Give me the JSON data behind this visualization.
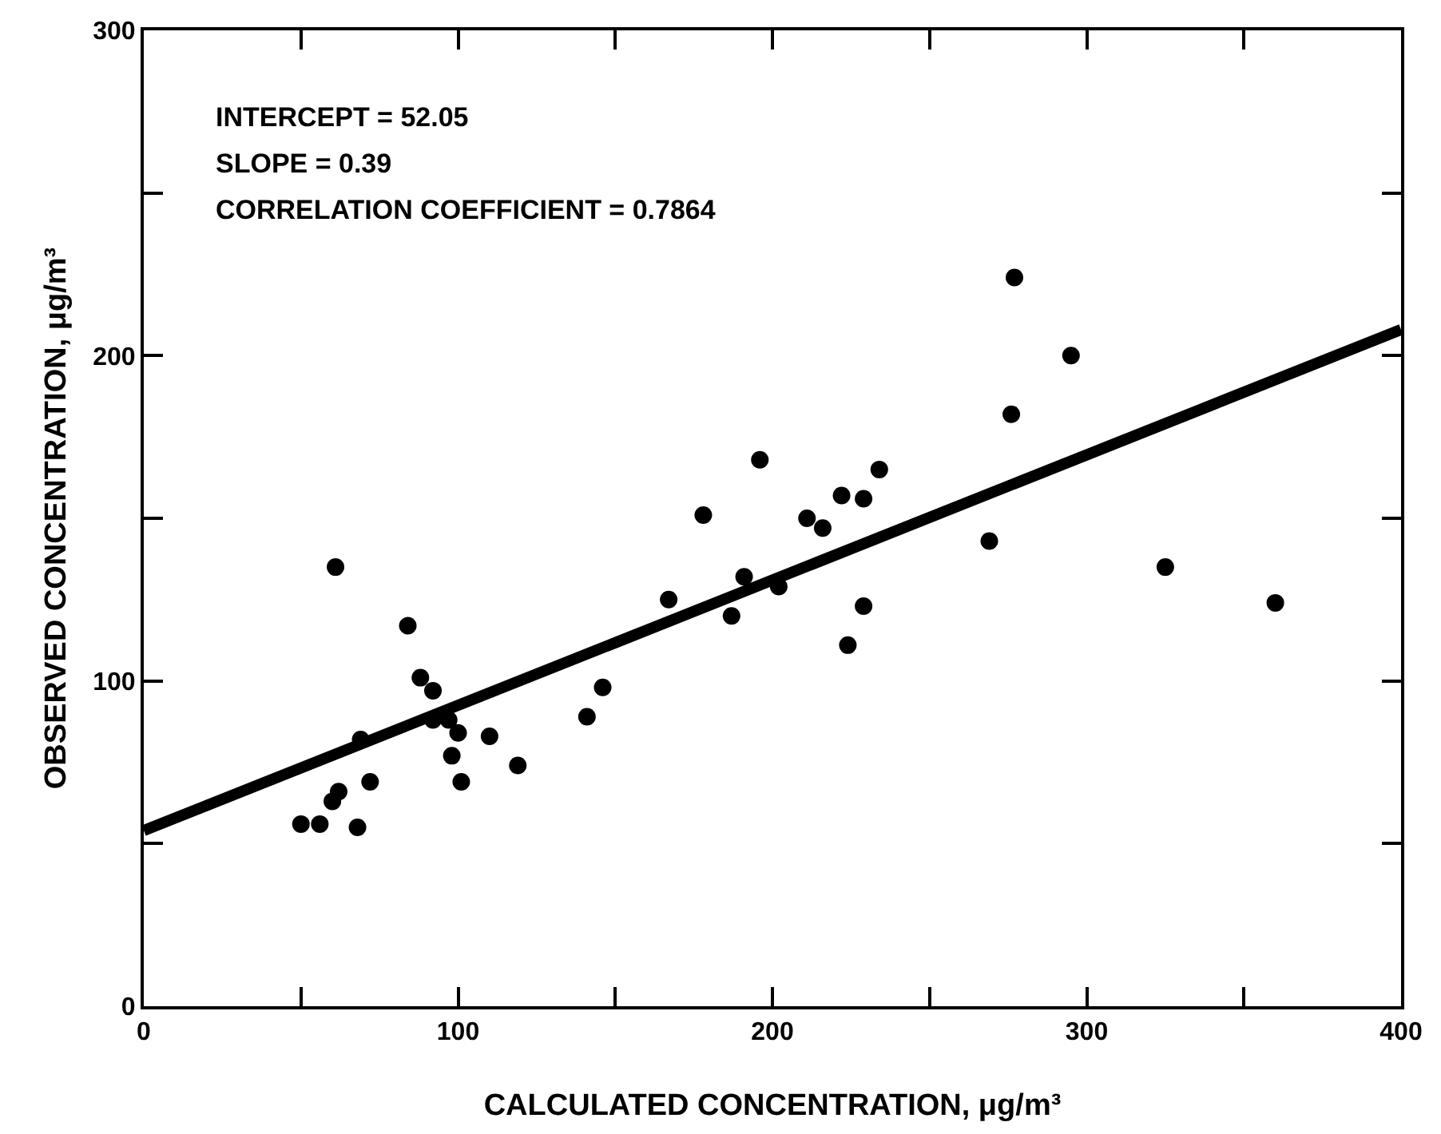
{
  "chart_data": {
    "type": "scatter",
    "xlabel": "CALCULATED CONCENTRATION, μg/m³",
    "ylabel": "OBSERVED CONCENTRATION, μg/m³",
    "annotations": [
      "INTERCEPT = 52.05",
      "SLOPE = 0.39",
      "CORRELATION COEFFICIENT = 0.7864"
    ],
    "xlim": [
      0,
      400
    ],
    "ylim": [
      0,
      300
    ],
    "xticks": [
      0,
      {
        "value": 50,
        "label": null
      },
      100,
      {
        "value": 150,
        "label": null
      },
      200,
      {
        "value": 250,
        "label": null
      },
      300,
      {
        "value": 350,
        "label": null
      },
      400
    ],
    "yticks": [
      0,
      {
        "value": 50,
        "label": null
      },
      100,
      {
        "value": 150,
        "label": null
      },
      200,
      {
        "value": 250,
        "label": null
      },
      300
    ],
    "grid": false,
    "marker": "circle",
    "series": [
      {
        "type": "line",
        "color": "#000000",
        "marker": "none",
        "line_style": "solid",
        "x": [
          0,
          400
        ],
        "values": [
          54,
          208
        ]
      },
      {
        "type": "scatter",
        "color": "#000000",
        "x": [
          61,
          84,
          88,
          92,
          92,
          97,
          100,
          98,
          101,
          110,
          119,
          69,
          72,
          62,
          60,
          50,
          56,
          68,
          141,
          146,
          196,
          178,
          167,
          191,
          187,
          202,
          211,
          216,
          222,
          229,
          234,
          229,
          224,
          277,
          295,
          276,
          269,
          325,
          360
        ],
        "values": [
          135,
          117,
          101,
          97,
          88,
          88,
          84,
          77,
          69,
          83,
          74,
          82,
          69,
          66,
          63,
          56,
          56,
          55,
          89,
          98,
          168,
          151,
          125,
          132,
          120,
          129,
          150,
          147,
          157,
          156,
          165,
          123,
          111,
          224,
          200,
          182,
          143,
          135,
          124
        ]
      }
    ]
  }
}
